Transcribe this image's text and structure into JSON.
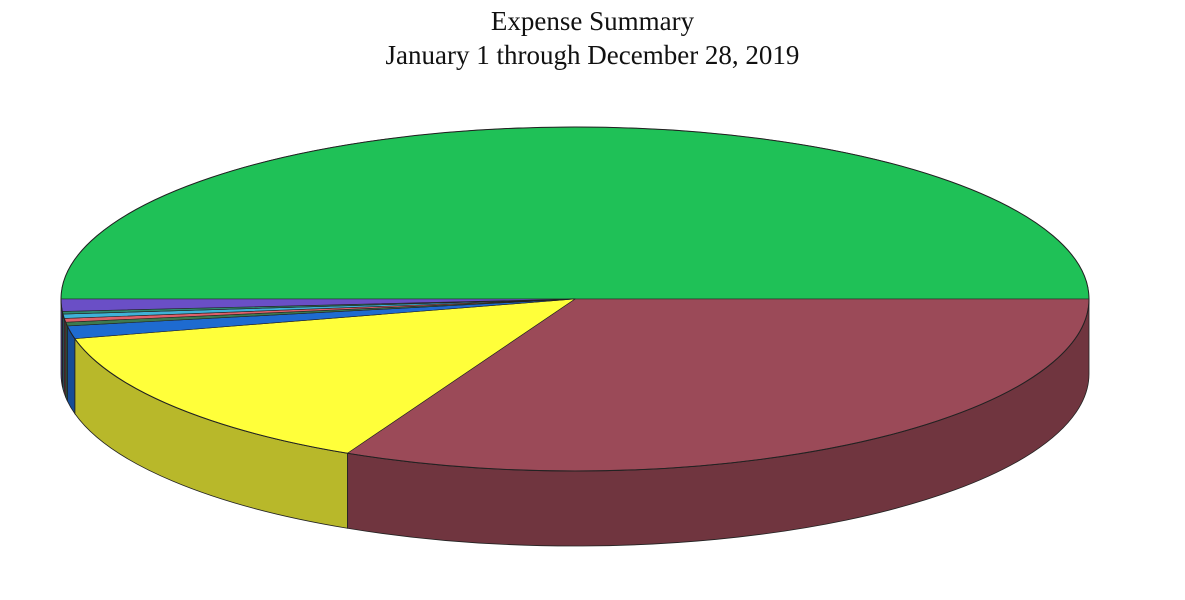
{
  "chart_data": {
    "type": "pie",
    "title": "Expense Summary",
    "subtitle": "January 1 through December 28, 2019",
    "legend": "none",
    "slices": [
      {
        "value": 50.0,
        "color": "#1fc157"
      },
      {
        "value": 32.3,
        "color": "#9b4a58"
      },
      {
        "value": 14.0,
        "color": "#ffff3a"
      },
      {
        "value": 1.2,
        "color": "#1e6bd0"
      },
      {
        "value": 0.35,
        "color": "#3d7a4f"
      },
      {
        "value": 0.35,
        "color": "#e0606a"
      },
      {
        "value": 0.4,
        "color": "#3fb2d8"
      },
      {
        "value": 0.25,
        "color": "#2f8a70"
      },
      {
        "value": 1.15,
        "color": "#6a4fc6"
      }
    ]
  }
}
